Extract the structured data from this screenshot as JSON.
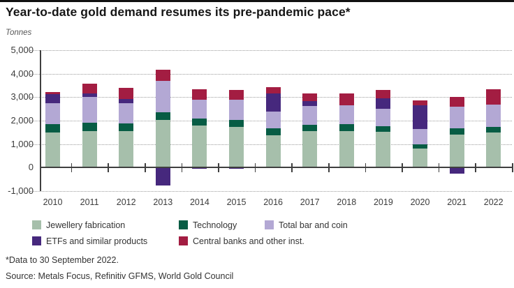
{
  "header": {
    "title": "Year-to-date gold demand resumes its pre-pandemic pace*",
    "unit_label": "Tonnes"
  },
  "footer": {
    "note": "*Data to 30 September 2022.",
    "source": "Source: Metals Focus, Refinitiv GFMS, World Gold Council"
  },
  "axis_colors": {
    "grid": "#9b9b9b",
    "zero_line": "#3f3f3f",
    "tick_label": "#3c3c3c"
  },
  "chart_data": {
    "type": "bar",
    "stacked": true,
    "title": "Year-to-date gold demand resumes its pre-pandemic pace*",
    "ylabel": "Tonnes",
    "ylim": [
      -1000,
      5000
    ],
    "ytick_interval": 1000,
    "ytick_labels": [
      "5,000",
      "4,000",
      "3,000",
      "2,000",
      "1,000",
      "0",
      "-1,000"
    ],
    "grid": "dotted-horizontal",
    "legend_position": "bottom",
    "categories": [
      "2010",
      "2011",
      "2012",
      "2013",
      "2014",
      "2015",
      "2016",
      "2017",
      "2018",
      "2019",
      "2020",
      "2021",
      "2022"
    ],
    "series": [
      {
        "name": "Jewellery fabrication",
        "color": "#a6bfab",
        "values": [
          1500,
          1560,
          1550,
          2020,
          1790,
          1720,
          1380,
          1550,
          1540,
          1520,
          800,
          1420,
          1490
        ]
      },
      {
        "name": "Technology",
        "color": "#075c44",
        "values": [
          350,
          350,
          330,
          350,
          300,
          300,
          290,
          280,
          300,
          250,
          200,
          260,
          250
        ]
      },
      {
        "name": "Total bar and coin",
        "color": "#b3a8d4",
        "values": [
          880,
          1100,
          850,
          1330,
          790,
          860,
          720,
          790,
          810,
          740,
          650,
          920,
          930
        ]
      },
      {
        "name": "ETFs and similar products",
        "color": "#46287d",
        "values": [
          400,
          150,
          180,
          -750,
          -60,
          -60,
          770,
          220,
          0,
          440,
          1000,
          -250,
          0
        ]
      },
      {
        "name": "Central banks and other inst.",
        "color": "#a31d42",
        "values": [
          100,
          400,
          480,
          470,
          470,
          420,
          280,
          310,
          510,
          370,
          220,
          400,
          670
        ]
      }
    ]
  },
  "legend_rows": [
    [
      0,
      1,
      2
    ],
    [
      3,
      4
    ]
  ]
}
